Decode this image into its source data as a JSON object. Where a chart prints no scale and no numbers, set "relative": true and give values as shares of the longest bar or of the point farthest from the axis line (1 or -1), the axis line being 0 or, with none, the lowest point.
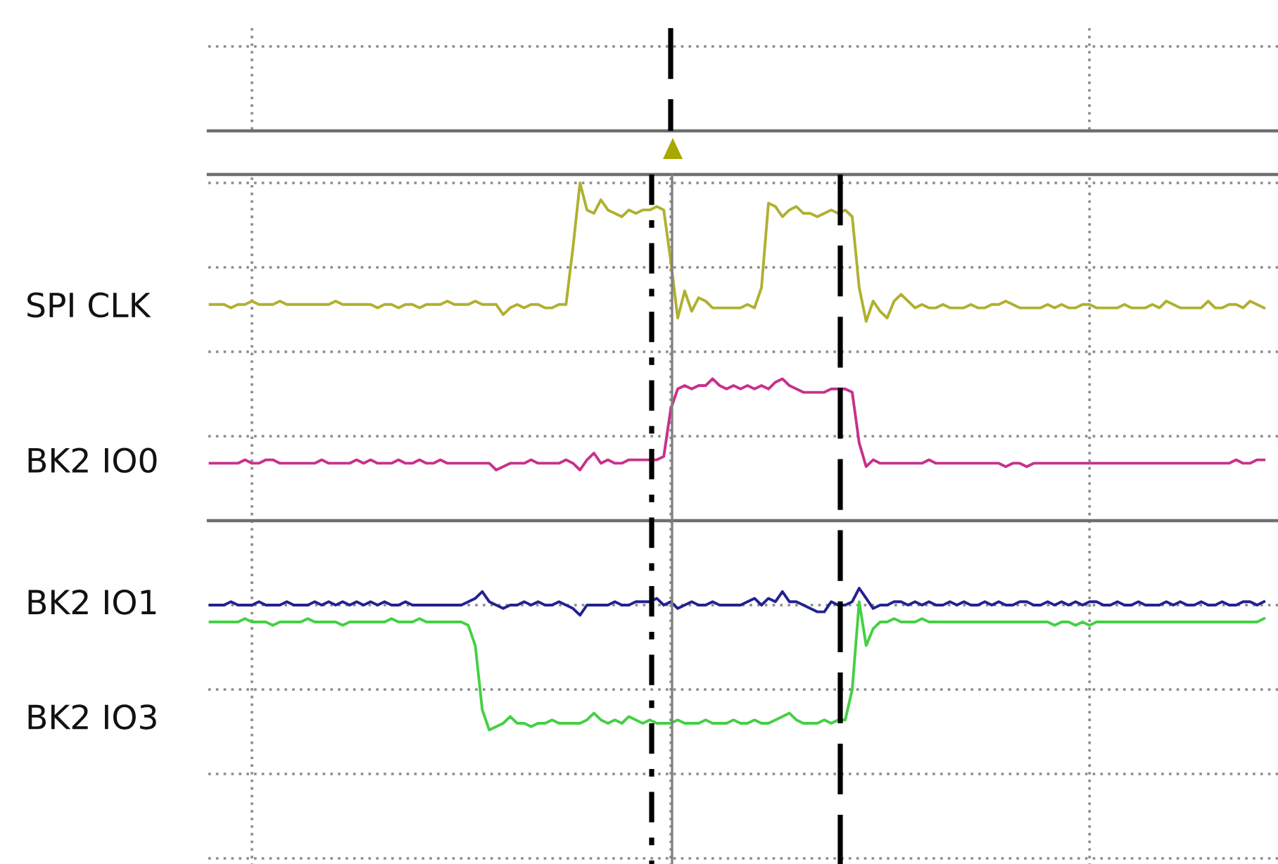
{
  "chart_data": {
    "type": "line",
    "relative": true,
    "grid": true,
    "tick_labels": false,
    "categories": [
      null,
      null,
      null,
      null,
      null,
      null,
      null,
      null,
      null,
      null,
      null,
      null,
      null,
      null,
      null,
      null,
      null,
      null,
      null,
      null,
      null,
      null,
      null,
      null,
      null,
      null,
      null,
      null,
      null,
      null,
      null,
      null,
      null,
      null,
      null,
      null,
      null,
      null,
      null,
      null,
      null,
      null,
      null,
      null,
      null,
      null,
      null,
      null,
      null,
      null,
      null,
      null,
      null,
      null,
      null,
      null,
      null,
      null,
      null,
      null,
      null,
      null,
      null,
      null,
      null,
      null,
      null,
      null,
      null,
      null,
      null,
      null,
      null,
      null,
      null,
      null,
      null,
      null,
      null,
      null,
      null,
      null,
      null,
      null,
      null,
      null,
      null,
      null,
      null,
      null,
      null,
      null,
      null,
      null,
      null,
      null,
      null,
      null,
      null,
      null,
      null,
      null,
      null,
      null,
      null,
      null,
      null,
      null,
      null,
      null,
      null,
      null,
      null,
      null,
      null,
      null,
      null,
      null,
      null,
      null,
      null,
      null,
      null,
      null,
      null,
      null,
      null,
      null,
      null,
      null,
      null,
      null,
      null,
      null,
      null,
      null,
      null,
      null,
      null,
      null,
      null,
      null,
      null,
      null,
      null,
      null,
      null,
      null,
      null,
      null,
      null,
      null
    ],
    "series": [
      {
        "name": "SPI CLK",
        "color": "#b0b030",
        "values": [
          0.64,
          0.64,
          0.64,
          0.63,
          0.64,
          0.64,
          0.65,
          0.64,
          0.64,
          0.64,
          0.65,
          0.64,
          0.64,
          0.64,
          0.64,
          0.64,
          0.64,
          0.64,
          0.65,
          0.64,
          0.64,
          0.64,
          0.64,
          0.64,
          0.63,
          0.64,
          0.64,
          0.63,
          0.64,
          0.64,
          0.63,
          0.64,
          0.64,
          0.64,
          0.65,
          0.64,
          0.64,
          0.64,
          0.65,
          0.64,
          0.64,
          0.64,
          0.61,
          0.63,
          0.64,
          0.63,
          0.64,
          0.64,
          0.63,
          0.63,
          0.64,
          0.64,
          0.81,
          1.0,
          0.92,
          0.91,
          0.95,
          0.92,
          0.91,
          0.9,
          0.92,
          0.91,
          0.92,
          0.92,
          0.93,
          0.92,
          0.77,
          0.6,
          0.68,
          0.62,
          0.66,
          0.65,
          0.63,
          0.63,
          0.63,
          0.63,
          0.63,
          0.64,
          0.63,
          0.69,
          0.94,
          0.93,
          0.9,
          0.92,
          0.93,
          0.91,
          0.91,
          0.9,
          0.91,
          0.92,
          0.91,
          0.92,
          0.9,
          0.69,
          0.59,
          0.65,
          0.62,
          0.6,
          0.65,
          0.67,
          0.65,
          0.63,
          0.64,
          0.63,
          0.63,
          0.64,
          0.63,
          0.63,
          0.63,
          0.64,
          0.63,
          0.63,
          0.64,
          0.64,
          0.65,
          0.64,
          0.63,
          0.63,
          0.63,
          0.63,
          0.64,
          0.63,
          0.64,
          0.63,
          0.63,
          0.64,
          0.64,
          0.63,
          0.63,
          0.63,
          0.63,
          0.64,
          0.63,
          0.63,
          0.63,
          0.64,
          0.63,
          0.65,
          0.64,
          0.63,
          0.63,
          0.63,
          0.63,
          0.65,
          0.63,
          0.63,
          0.64,
          0.64,
          0.63,
          0.65,
          0.64,
          0.63
        ]
      },
      {
        "name": "BK2 IO0",
        "color": "#c8308c",
        "values": [
          0.17,
          0.17,
          0.17,
          0.17,
          0.17,
          0.18,
          0.17,
          0.17,
          0.18,
          0.18,
          0.17,
          0.17,
          0.17,
          0.17,
          0.17,
          0.17,
          0.18,
          0.17,
          0.17,
          0.17,
          0.17,
          0.18,
          0.17,
          0.18,
          0.17,
          0.17,
          0.17,
          0.18,
          0.17,
          0.17,
          0.18,
          0.17,
          0.17,
          0.18,
          0.17,
          0.17,
          0.17,
          0.17,
          0.17,
          0.17,
          0.17,
          0.15,
          0.16,
          0.17,
          0.17,
          0.17,
          0.18,
          0.17,
          0.17,
          0.17,
          0.17,
          0.18,
          0.17,
          0.15,
          0.18,
          0.2,
          0.17,
          0.18,
          0.17,
          0.17,
          0.18,
          0.18,
          0.18,
          0.18,
          0.18,
          0.19,
          0.33,
          0.39,
          0.4,
          0.39,
          0.4,
          0.4,
          0.42,
          0.4,
          0.39,
          0.4,
          0.39,
          0.4,
          0.39,
          0.4,
          0.39,
          0.41,
          0.42,
          0.4,
          0.39,
          0.38,
          0.38,
          0.38,
          0.38,
          0.39,
          0.39,
          0.39,
          0.38,
          0.23,
          0.16,
          0.18,
          0.17,
          0.17,
          0.17,
          0.17,
          0.17,
          0.17,
          0.17,
          0.18,
          0.17,
          0.17,
          0.17,
          0.17,
          0.17,
          0.17,
          0.17,
          0.17,
          0.17,
          0.17,
          0.16,
          0.17,
          0.17,
          0.16,
          0.17,
          0.17,
          0.17,
          0.17,
          0.17,
          0.17,
          0.17,
          0.17,
          0.17,
          0.17,
          0.17,
          0.17,
          0.17,
          0.17,
          0.17,
          0.17,
          0.17,
          0.17,
          0.17,
          0.17,
          0.17,
          0.17,
          0.17,
          0.17,
          0.17,
          0.17,
          0.17,
          0.17,
          0.17,
          0.18,
          0.17,
          0.17,
          0.18,
          0.18
        ]
      },
      {
        "name": "BK2 IO1",
        "color": "#222290",
        "values": [
          -0.25,
          -0.25,
          -0.25,
          -0.24,
          -0.25,
          -0.25,
          -0.25,
          -0.24,
          -0.25,
          -0.25,
          -0.25,
          -0.24,
          -0.25,
          -0.25,
          -0.25,
          -0.24,
          -0.25,
          -0.24,
          -0.25,
          -0.24,
          -0.25,
          -0.24,
          -0.25,
          -0.24,
          -0.25,
          -0.24,
          -0.25,
          -0.25,
          -0.24,
          -0.25,
          -0.25,
          -0.25,
          -0.25,
          -0.25,
          -0.25,
          -0.25,
          -0.25,
          -0.24,
          -0.23,
          -0.21,
          -0.24,
          -0.25,
          -0.26,
          -0.25,
          -0.25,
          -0.24,
          -0.25,
          -0.24,
          -0.25,
          -0.25,
          -0.24,
          -0.25,
          -0.26,
          -0.28,
          -0.25,
          -0.25,
          -0.25,
          -0.25,
          -0.24,
          -0.25,
          -0.25,
          -0.24,
          -0.24,
          -0.24,
          -0.23,
          -0.25,
          -0.24,
          -0.26,
          -0.25,
          -0.24,
          -0.25,
          -0.25,
          -0.24,
          -0.25,
          -0.25,
          -0.25,
          -0.25,
          -0.24,
          -0.23,
          -0.25,
          -0.23,
          -0.24,
          -0.21,
          -0.24,
          -0.24,
          -0.25,
          -0.26,
          -0.27,
          -0.27,
          -0.24,
          -0.25,
          -0.25,
          -0.24,
          -0.2,
          -0.23,
          -0.26,
          -0.25,
          -0.25,
          -0.24,
          -0.24,
          -0.25,
          -0.24,
          -0.25,
          -0.24,
          -0.25,
          -0.25,
          -0.24,
          -0.25,
          -0.24,
          -0.25,
          -0.25,
          -0.24,
          -0.25,
          -0.24,
          -0.25,
          -0.25,
          -0.24,
          -0.24,
          -0.25,
          -0.25,
          -0.24,
          -0.25,
          -0.24,
          -0.25,
          -0.24,
          -0.25,
          -0.24,
          -0.24,
          -0.25,
          -0.25,
          -0.24,
          -0.25,
          -0.25,
          -0.24,
          -0.25,
          -0.25,
          -0.25,
          -0.24,
          -0.25,
          -0.24,
          -0.25,
          -0.25,
          -0.24,
          -0.25,
          -0.25,
          -0.24,
          -0.25,
          -0.25,
          -0.24,
          -0.24,
          -0.25,
          -0.24
        ]
      },
      {
        "name": "BK2 IO3",
        "color": "#44d044",
        "values": [
          -0.3,
          -0.3,
          -0.3,
          -0.3,
          -0.3,
          -0.29,
          -0.3,
          -0.3,
          -0.3,
          -0.31,
          -0.3,
          -0.3,
          -0.3,
          -0.3,
          -0.29,
          -0.3,
          -0.3,
          -0.3,
          -0.3,
          -0.31,
          -0.3,
          -0.3,
          -0.3,
          -0.3,
          -0.3,
          -0.3,
          -0.29,
          -0.3,
          -0.3,
          -0.3,
          -0.29,
          -0.3,
          -0.3,
          -0.3,
          -0.3,
          -0.3,
          -0.3,
          -0.31,
          -0.37,
          -0.56,
          -0.62,
          -0.61,
          -0.6,
          -0.58,
          -0.6,
          -0.6,
          -0.61,
          -0.6,
          -0.6,
          -0.59,
          -0.6,
          -0.6,
          -0.6,
          -0.6,
          -0.59,
          -0.57,
          -0.59,
          -0.6,
          -0.59,
          -0.6,
          -0.58,
          -0.59,
          -0.6,
          -0.59,
          -0.6,
          -0.6,
          -0.6,
          -0.59,
          -0.6,
          -0.6,
          -0.6,
          -0.59,
          -0.6,
          -0.6,
          -0.6,
          -0.59,
          -0.6,
          -0.6,
          -0.59,
          -0.6,
          -0.6,
          -0.59,
          -0.58,
          -0.57,
          -0.59,
          -0.6,
          -0.6,
          -0.6,
          -0.59,
          -0.6,
          -0.59,
          -0.59,
          -0.5,
          -0.24,
          -0.37,
          -0.32,
          -0.3,
          -0.3,
          -0.29,
          -0.3,
          -0.3,
          -0.3,
          -0.29,
          -0.3,
          -0.3,
          -0.3,
          -0.3,
          -0.3,
          -0.3,
          -0.3,
          -0.3,
          -0.3,
          -0.3,
          -0.3,
          -0.3,
          -0.3,
          -0.3,
          -0.3,
          -0.3,
          -0.3,
          -0.3,
          -0.31,
          -0.3,
          -0.3,
          -0.31,
          -0.3,
          -0.31,
          -0.3,
          -0.3,
          -0.3,
          -0.3,
          -0.3,
          -0.3,
          -0.3,
          -0.3,
          -0.3,
          -0.3,
          -0.3,
          -0.3,
          -0.3,
          -0.3,
          -0.3,
          -0.3,
          -0.3,
          -0.3,
          -0.3,
          -0.3,
          -0.3,
          -0.3,
          -0.3,
          -0.3,
          -0.29
        ]
      }
    ]
  }
}
